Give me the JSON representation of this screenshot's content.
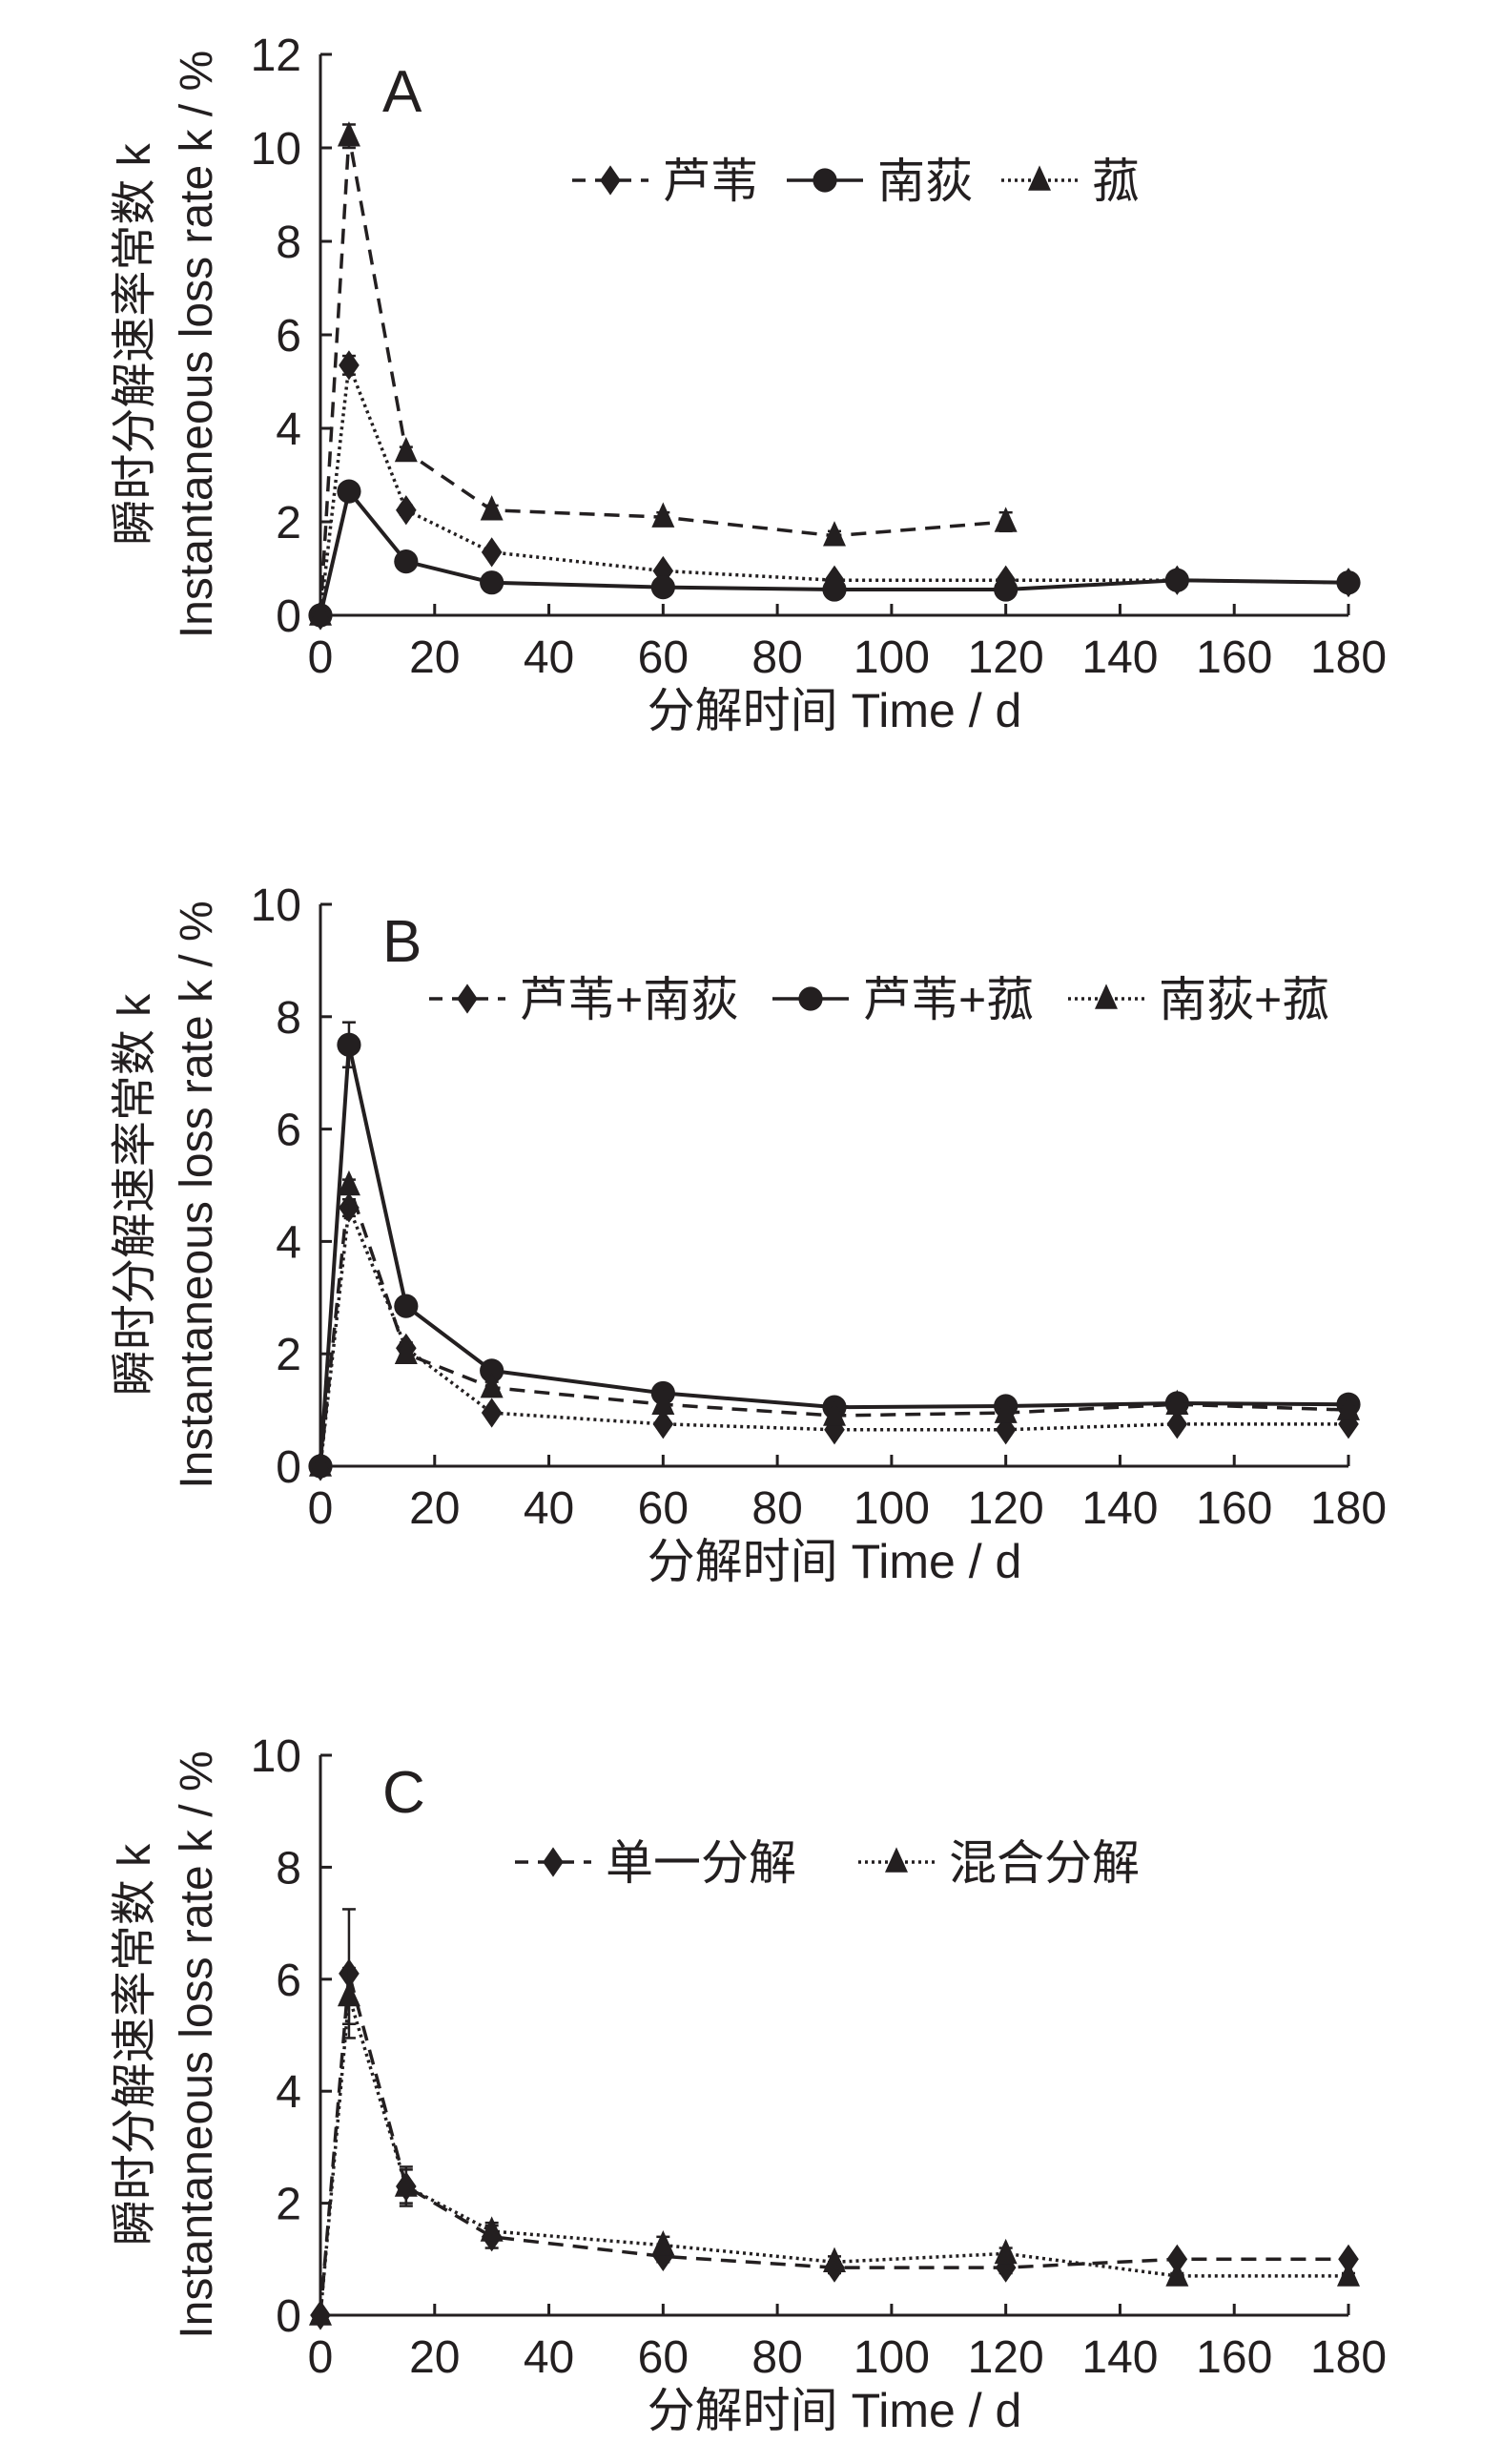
{
  "chart_data": [
    {
      "type": "line",
      "panel_label": "A",
      "xlabel": "分解时间 Time / d",
      "ylabel_cn": "瞬时分解速率常数 k",
      "ylabel_en": "Instantaneous loss rate k / %",
      "xlim": [
        0,
        180
      ],
      "ylim": [
        0,
        12
      ],
      "xticks": [
        "0",
        "20",
        "40",
        "60",
        "80",
        "100",
        "120",
        "140",
        "160",
        "180"
      ],
      "yticks": [
        "0",
        "2",
        "4",
        "6",
        "8",
        "10",
        "12"
      ],
      "grid": false,
      "legend_position": "top-center",
      "series": [
        {
          "name": "芦苇",
          "marker": "diamond",
          "line": "dotted",
          "legend_line": "dashed",
          "x": [
            0,
            5,
            15,
            30,
            60,
            90,
            120,
            150,
            180
          ],
          "y": [
            0,
            5.35,
            2.25,
            1.35,
            0.95,
            0.75,
            0.75,
            0.75,
            0.7
          ],
          "err": [
            0,
            0.2,
            0.1,
            0.05,
            0.05,
            0.05,
            0.05,
            0.05,
            0.05
          ]
        },
        {
          "name": "南荻",
          "marker": "circle",
          "line": "solid",
          "legend_line": "solid",
          "x": [
            0,
            5,
            15,
            30,
            60,
            90,
            120,
            150,
            180
          ],
          "y": [
            0,
            2.65,
            1.15,
            0.7,
            0.6,
            0.55,
            0.55,
            0.75,
            0.7
          ],
          "err": [
            0,
            0.05,
            0.05,
            0.05,
            0.05,
            0.05,
            0.05,
            0.05,
            0.05
          ]
        },
        {
          "name": "菰",
          "marker": "triangle",
          "line": "dashed",
          "legend_line": "dotted",
          "x": [
            0,
            5,
            15,
            30,
            60,
            90,
            120
          ],
          "y": [
            0,
            10.25,
            3.5,
            2.25,
            2.1,
            1.7,
            2.0
          ],
          "err": [
            0,
            0.25,
            0.1,
            0.1,
            0.1,
            0.1,
            0.2
          ]
        }
      ]
    },
    {
      "type": "line",
      "panel_label": "B",
      "xlabel": "分解时间 Time / d",
      "ylabel_cn": "瞬时分解速率常数 k",
      "ylabel_en": "Instantaneous loss rate k / %",
      "xlim": [
        0,
        180
      ],
      "ylim": [
        0,
        10
      ],
      "xticks": [
        "0",
        "20",
        "40",
        "60",
        "80",
        "100",
        "120",
        "140",
        "160",
        "180"
      ],
      "yticks": [
        "0",
        "2",
        "4",
        "6",
        "8",
        "10"
      ],
      "grid": false,
      "legend_position": "top",
      "series": [
        {
          "name": "芦苇+南荻",
          "marker": "diamond",
          "line": "dotted",
          "legend_line": "dashed",
          "x": [
            0,
            5,
            15,
            30,
            60,
            90,
            120,
            150,
            180
          ],
          "y": [
            0,
            4.6,
            2.1,
            0.95,
            0.75,
            0.65,
            0.65,
            0.75,
            0.75
          ],
          "err": [
            0,
            0.15,
            0.1,
            0.05,
            0.05,
            0.05,
            0.05,
            0.05,
            0.05
          ]
        },
        {
          "name": "芦苇+菰",
          "marker": "circle",
          "line": "solid",
          "legend_line": "solid",
          "x": [
            0,
            5,
            15,
            30,
            60,
            90,
            120,
            150,
            180
          ],
          "y": [
            0,
            7.5,
            2.85,
            1.7,
            1.3,
            1.05,
            1.07,
            1.12,
            1.1
          ],
          "err": [
            0,
            0.4,
            0.05,
            0.05,
            0.05,
            0.05,
            0.05,
            0.05,
            0.05
          ]
        },
        {
          "name": "南荻+菰",
          "marker": "triangle",
          "line": "dashed",
          "legend_line": "dotted",
          "x": [
            0,
            5,
            15,
            30,
            60,
            90,
            120,
            150,
            180
          ],
          "y": [
            0,
            5.0,
            2.0,
            1.4,
            1.1,
            0.9,
            0.95,
            1.1,
            1.0
          ],
          "err": [
            0,
            0.1,
            0.1,
            0.1,
            0.05,
            0.05,
            0.05,
            0.05,
            0.05
          ]
        }
      ]
    },
    {
      "type": "line",
      "panel_label": "C",
      "xlabel": "分解时间 Time / d",
      "ylabel_cn": "瞬时分解速率常数 k",
      "ylabel_en": "Instantaneous loss rate k / %",
      "xlim": [
        0,
        180
      ],
      "ylim": [
        0,
        10
      ],
      "xticks": [
        "0",
        "20",
        "40",
        "60",
        "80",
        "100",
        "120",
        "140",
        "160",
        "180"
      ],
      "yticks": [
        "0",
        "2",
        "4",
        "6",
        "8",
        "10"
      ],
      "grid": false,
      "legend_position": "top",
      "series": [
        {
          "name": "单一分解",
          "marker": "diamond",
          "line": "dashed",
          "legend_line": "dashed",
          "x": [
            0,
            5,
            15,
            30,
            60,
            90,
            120,
            150,
            180
          ],
          "y": [
            0,
            6.1,
            2.3,
            1.4,
            1.05,
            0.85,
            0.85,
            1.0,
            1.0
          ],
          "err": [
            0,
            1.15,
            0.35,
            0.2,
            0.1,
            0.1,
            0.1,
            0.05,
            0.05
          ]
        },
        {
          "name": "混合分解",
          "marker": "triangle",
          "line": "dotted",
          "legend_line": "dotted",
          "x": [
            0,
            5,
            15,
            30,
            60,
            90,
            120,
            150,
            180
          ],
          "y": [
            0,
            5.7,
            2.3,
            1.5,
            1.25,
            0.95,
            1.1,
            0.7,
            0.7
          ],
          "err": [
            0,
            0.5,
            0.3,
            0.15,
            0.15,
            0.1,
            0.1,
            0.05,
            0.05
          ]
        }
      ]
    }
  ]
}
